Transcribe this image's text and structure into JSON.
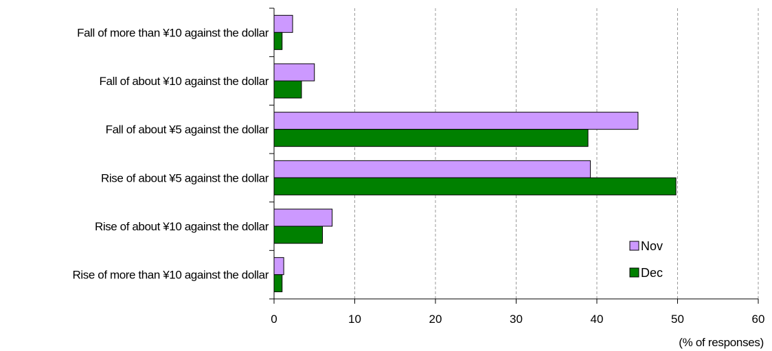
{
  "chart_data": {
    "type": "bar",
    "orientation": "horizontal",
    "categories": [
      "Fall of more than ¥10 against the dollar",
      "Fall of about ¥10 against the dollar",
      "Fall of about ¥5 against the dollar",
      "Rise of about ¥5 against the dollar",
      "Rise of about ¥10 against the dollar",
      "Rise of more than ¥10 against the dollar"
    ],
    "series": [
      {
        "name": "Nov",
        "values": [
          2.3,
          5.0,
          45.1,
          39.2,
          7.2,
          1.2
        ],
        "color": "#cc99ff"
      },
      {
        "name": "Dec",
        "values": [
          1.0,
          3.4,
          38.9,
          49.8,
          6.0,
          1.0
        ],
        "color": "#008000"
      }
    ],
    "xlim": [
      0,
      60
    ],
    "xticks": [
      0,
      10,
      20,
      30,
      40,
      50,
      60
    ],
    "unit_label": "(% of responses)",
    "grid": "vertical dashed",
    "legend_position": "bottom-right"
  }
}
